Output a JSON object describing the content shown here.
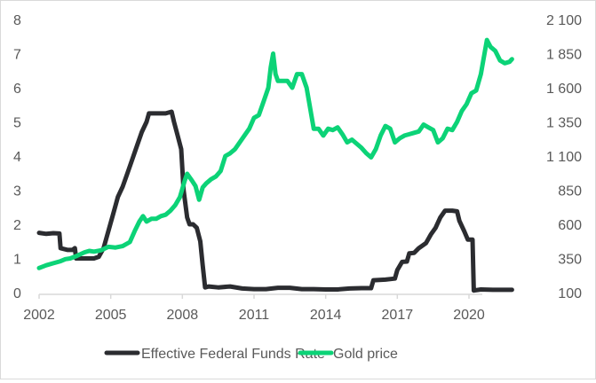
{
  "chart_data": {
    "type": "line",
    "title": "",
    "xlabel": "",
    "ylabel_left": "",
    "ylabel_right": "",
    "x_ticks": [
      "2002",
      "2005",
      "2008",
      "2011",
      "2014",
      "2017",
      "2020"
    ],
    "xlim": [
      2002,
      2022.2
    ],
    "y_left": {
      "ticks": [
        "0",
        "1",
        "2",
        "3",
        "4",
        "5",
        "6",
        "7",
        "8"
      ],
      "range": [
        0,
        8
      ]
    },
    "y_right": {
      "ticks": [
        "100",
        "350",
        "600",
        "850",
        "1 100",
        "1 350",
        "1 600",
        "1 850",
        "2 100"
      ],
      "range": [
        100,
        2100
      ]
    },
    "grid": false,
    "legend_position": "bottom",
    "series": [
      {
        "name": "Effective Federal Funds Rate",
        "axis": "left",
        "color": "#2b2c30",
        "x": [
          2002.0,
          2002.3,
          2002.6,
          2002.85,
          2002.9,
          2003.2,
          2003.4,
          2003.5,
          2003.55,
          2003.7,
          2004.0,
          2004.3,
          2004.5,
          2004.7,
          2004.9,
          2005.1,
          2005.3,
          2005.5,
          2005.7,
          2005.9,
          2006.1,
          2006.3,
          2006.5,
          2006.6,
          2006.8,
          2007.0,
          2007.3,
          2007.55,
          2007.65,
          2007.8,
          2007.95,
          2008.05,
          2008.2,
          2008.3,
          2008.45,
          2008.6,
          2008.75,
          2008.85,
          2008.95,
          2009.1,
          2009.5,
          2010.0,
          2010.5,
          2011.0,
          2011.5,
          2012.0,
          2012.5,
          2013.0,
          2013.5,
          2014.0,
          2014.5,
          2015.0,
          2015.5,
          2015.9,
          2016.0,
          2016.5,
          2016.9,
          2017.0,
          2017.2,
          2017.4,
          2017.5,
          2017.7,
          2017.9,
          2018.2,
          2018.4,
          2018.6,
          2018.8,
          2019.0,
          2019.3,
          2019.5,
          2019.6,
          2019.8,
          2019.95,
          2020.15,
          2020.2,
          2020.5,
          2021.0,
          2021.5,
          2021.8
        ],
        "y": [
          1.75,
          1.72,
          1.74,
          1.73,
          1.3,
          1.25,
          1.25,
          1.3,
          1.0,
          1.0,
          1.0,
          1.0,
          1.05,
          1.3,
          1.8,
          2.3,
          2.8,
          3.1,
          3.5,
          3.9,
          4.3,
          4.7,
          5.0,
          5.25,
          5.25,
          5.25,
          5.25,
          5.3,
          5.0,
          4.6,
          4.2,
          3.0,
          2.2,
          2.0,
          2.0,
          1.9,
          1.5,
          0.8,
          0.15,
          0.18,
          0.15,
          0.18,
          0.12,
          0.1,
          0.1,
          0.14,
          0.14,
          0.1,
          0.1,
          0.09,
          0.09,
          0.12,
          0.13,
          0.13,
          0.36,
          0.38,
          0.41,
          0.66,
          0.9,
          0.91,
          1.15,
          1.16,
          1.3,
          1.45,
          1.7,
          1.9,
          2.2,
          2.4,
          2.4,
          2.38,
          2.1,
          1.8,
          1.55,
          1.55,
          0.06,
          0.09,
          0.08,
          0.08,
          0.08
        ]
      },
      {
        "name": "Gold price",
        "axis": "right",
        "color": "#0cd377",
        "x": [
          2002.0,
          2002.3,
          2002.6,
          2002.9,
          2003.1,
          2003.3,
          2003.6,
          2003.9,
          2004.1,
          2004.3,
          2004.6,
          2004.9,
          2005.2,
          2005.5,
          2005.8,
          2006.0,
          2006.2,
          2006.35,
          2006.5,
          2006.7,
          2006.9,
          2007.1,
          2007.3,
          2007.5,
          2007.7,
          2007.9,
          2008.1,
          2008.2,
          2008.4,
          2008.55,
          2008.7,
          2008.85,
          2009.0,
          2009.2,
          2009.4,
          2009.6,
          2009.8,
          2010.0,
          2010.2,
          2010.4,
          2010.6,
          2010.8,
          2011.0,
          2011.2,
          2011.4,
          2011.6,
          2011.7,
          2011.8,
          2011.9,
          2012.0,
          2012.2,
          2012.4,
          2012.6,
          2012.8,
          2013.0,
          2013.2,
          2013.35,
          2013.5,
          2013.7,
          2013.9,
          2014.1,
          2014.3,
          2014.5,
          2014.7,
          2014.9,
          2015.1,
          2015.3,
          2015.5,
          2015.7,
          2015.9,
          2016.1,
          2016.3,
          2016.5,
          2016.7,
          2016.9,
          2017.1,
          2017.3,
          2017.5,
          2017.7,
          2017.9,
          2018.1,
          2018.3,
          2018.5,
          2018.7,
          2018.9,
          2019.1,
          2019.3,
          2019.5,
          2019.7,
          2019.9,
          2020.1,
          2020.3,
          2020.5,
          2020.6,
          2020.75,
          2020.9,
          2021.1,
          2021.3,
          2021.5,
          2021.7,
          2021.8
        ],
        "y": [
          280,
          300,
          315,
          330,
          345,
          350,
          370,
          395,
          405,
          400,
          410,
          435,
          430,
          440,
          470,
          550,
          620,
          660,
          620,
          640,
          640,
          660,
          670,
          700,
          740,
          800,
          920,
          970,
          920,
          880,
          780,
          870,
          900,
          930,
          950,
          990,
          1100,
          1120,
          1150,
          1200,
          1250,
          1300,
          1380,
          1400,
          1500,
          1600,
          1750,
          1850,
          1700,
          1650,
          1650,
          1650,
          1600,
          1700,
          1700,
          1600,
          1450,
          1300,
          1300,
          1250,
          1300,
          1290,
          1310,
          1260,
          1200,
          1220,
          1190,
          1160,
          1120,
          1090,
          1150,
          1250,
          1320,
          1300,
          1200,
          1230,
          1250,
          1260,
          1270,
          1280,
          1330,
          1310,
          1290,
          1200,
          1230,
          1300,
          1290,
          1350,
          1430,
          1480,
          1560,
          1580,
          1700,
          1800,
          1950,
          1900,
          1870,
          1800,
          1780,
          1790,
          1810
        ]
      }
    ]
  }
}
